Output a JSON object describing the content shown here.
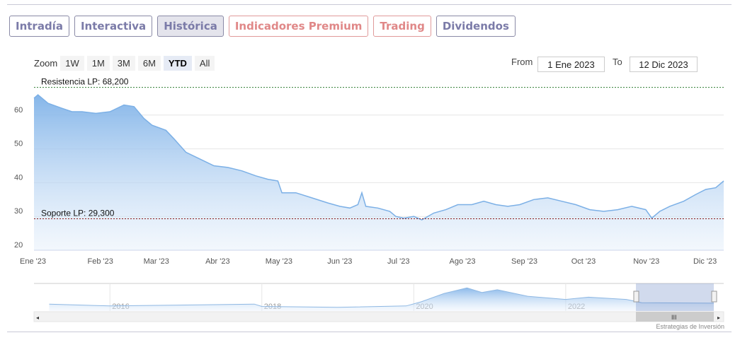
{
  "tabs": [
    {
      "label": "Intradía",
      "style": "normal"
    },
    {
      "label": "Interactiva",
      "style": "normal"
    },
    {
      "label": "Histórica",
      "style": "active"
    },
    {
      "label": "Indicadores Premium",
      "style": "red"
    },
    {
      "label": "Trading",
      "style": "red"
    },
    {
      "label": "Dividendos",
      "style": "normal"
    }
  ],
  "zoom": {
    "label": "Zoom",
    "buttons": [
      "1W",
      "1M",
      "3M",
      "6M",
      "YTD",
      "All"
    ],
    "selected": "YTD"
  },
  "range": {
    "from_label": "From",
    "from": "1 Ene 2023",
    "to_label": "To",
    "to": "12 Dic 2023"
  },
  "credit": "Estrategias de Inversión",
  "colors": {
    "line": "#7cb0e6",
    "fill_top": "#8fbbe8",
    "resistance": "#2e7d32",
    "support": "#8b1a1a"
  },
  "chart_data": {
    "type": "area",
    "ylim": [
      20,
      70
    ],
    "yticks": [
      20,
      30,
      40,
      50,
      60
    ],
    "xticks": [
      {
        "date": "2023-01-01",
        "label": "Ene '23"
      },
      {
        "date": "2023-02-01",
        "label": "Feb '23"
      },
      {
        "date": "2023-03-01",
        "label": "Mar '23"
      },
      {
        "date": "2023-04-01",
        "label": "Abr '23"
      },
      {
        "date": "2023-05-01",
        "label": "May '23"
      },
      {
        "date": "2023-06-01",
        "label": "Jun '23"
      },
      {
        "date": "2023-07-01",
        "label": "Jul '23"
      },
      {
        "date": "2023-08-01",
        "label": "Ago '23"
      },
      {
        "date": "2023-09-01",
        "label": "Sep '23"
      },
      {
        "date": "2023-10-01",
        "label": "Oct '23"
      },
      {
        "date": "2023-11-01",
        "label": "Nov '23"
      },
      {
        "date": "2023-12-01",
        "label": "Dic '23"
      }
    ],
    "xrange": [
      "2023-01-01",
      "2023-12-12"
    ],
    "lines": [
      {
        "label": "Resistencia LP: 68,200",
        "value": 68.2
      },
      {
        "label": "Soporte LP: 29,300",
        "value": 29.3
      }
    ],
    "series": [
      [
        "2023-01-01",
        65
      ],
      [
        "2023-01-03",
        66
      ],
      [
        "2023-01-08",
        63.5
      ],
      [
        "2023-01-15",
        62
      ],
      [
        "2023-01-20",
        61
      ],
      [
        "2023-01-25",
        61
      ],
      [
        "2023-02-01",
        60.5
      ],
      [
        "2023-02-08",
        61
      ],
      [
        "2023-02-15",
        63
      ],
      [
        "2023-02-20",
        62.5
      ],
      [
        "2023-02-25",
        59
      ],
      [
        "2023-03-01",
        57
      ],
      [
        "2023-03-08",
        55.5
      ],
      [
        "2023-03-12",
        53
      ],
      [
        "2023-03-18",
        49
      ],
      [
        "2023-03-25",
        47
      ],
      [
        "2023-04-01",
        45
      ],
      [
        "2023-04-08",
        44.5
      ],
      [
        "2023-04-15",
        43.5
      ],
      [
        "2023-04-22",
        42
      ],
      [
        "2023-04-28",
        41
      ],
      [
        "2023-05-03",
        40.5
      ],
      [
        "2023-05-05",
        37
      ],
      [
        "2023-05-12",
        37
      ],
      [
        "2023-05-20",
        35.5
      ],
      [
        "2023-05-28",
        34
      ],
      [
        "2023-06-03",
        33
      ],
      [
        "2023-06-08",
        32.5
      ],
      [
        "2023-06-12",
        33.5
      ],
      [
        "2023-06-14",
        37
      ],
      [
        "2023-06-16",
        33
      ],
      [
        "2023-06-22",
        32.5
      ],
      [
        "2023-06-28",
        31.5
      ],
      [
        "2023-07-01",
        30
      ],
      [
        "2023-07-05",
        29.5
      ],
      [
        "2023-07-10",
        30
      ],
      [
        "2023-07-14",
        29
      ],
      [
        "2023-07-20",
        31
      ],
      [
        "2023-07-26",
        32
      ],
      [
        "2023-08-01",
        33.5
      ],
      [
        "2023-08-08",
        33.5
      ],
      [
        "2023-08-14",
        34.5
      ],
      [
        "2023-08-20",
        33.5
      ],
      [
        "2023-08-26",
        33
      ],
      [
        "2023-09-01",
        33.5
      ],
      [
        "2023-09-08",
        35
      ],
      [
        "2023-09-15",
        35.5
      ],
      [
        "2023-09-22",
        34.5
      ],
      [
        "2023-09-29",
        33.5
      ],
      [
        "2023-10-06",
        32
      ],
      [
        "2023-10-13",
        31.5
      ],
      [
        "2023-10-20",
        32
      ],
      [
        "2023-10-27",
        33
      ],
      [
        "2023-11-03",
        32
      ],
      [
        "2023-11-06",
        29.5
      ],
      [
        "2023-11-10",
        31.5
      ],
      [
        "2023-11-15",
        33
      ],
      [
        "2023-11-22",
        34.5
      ],
      [
        "2023-11-28",
        36.5
      ],
      [
        "2023-12-03",
        38
      ],
      [
        "2023-12-08",
        38.5
      ],
      [
        "2023-12-12",
        40.5
      ]
    ],
    "navigator": {
      "labels": [
        "2016",
        "2018",
        "2020",
        "2022"
      ],
      "years": [
        2015.2,
        2016,
        2017,
        2017.9,
        2018,
        2019,
        2019.9,
        2020.1,
        2020.4,
        2020.7,
        2020.9,
        2021.1,
        2021.5,
        2022,
        2022.3,
        2022.8,
        2023,
        2023.95
      ],
      "values": [
        35,
        31,
        33,
        35,
        30,
        28,
        31,
        40,
        58,
        70,
        60,
        66,
        52,
        45,
        50,
        45,
        38,
        37
      ]
    }
  }
}
